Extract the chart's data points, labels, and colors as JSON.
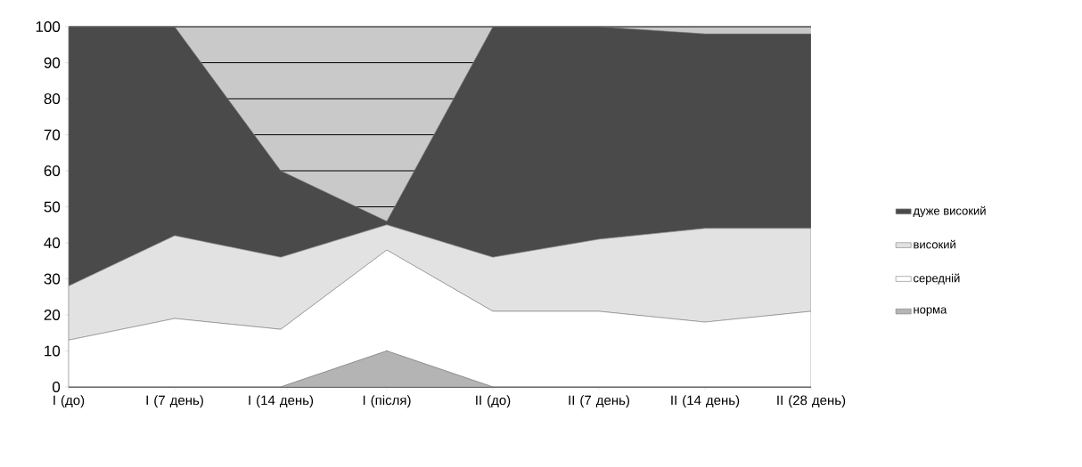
{
  "chart_data": {
    "type": "area",
    "stacked": true,
    "categories": [
      "I (до)",
      "I (7 день)",
      "I (14 день)",
      "I (після)",
      "II (до)",
      "II (7 день)",
      "II (14 день)",
      "II (28 день)"
    ],
    "series": [
      {
        "name": "норма",
        "color": "#b4b4b4",
        "values": [
          0,
          0,
          0,
          10,
          0,
          0,
          0,
          0
        ]
      },
      {
        "name": "середній",
        "color": "#ffffff",
        "values": [
          13,
          19,
          16,
          28,
          21,
          21,
          18,
          21
        ]
      },
      {
        "name": "високий",
        "color": "#e2e2e2",
        "values": [
          15,
          23,
          20,
          7,
          15,
          20,
          26,
          23
        ]
      },
      {
        "name": "дуже високий",
        "color": "#4a4a4a",
        "values": [
          72,
          58,
          24,
          1,
          64,
          59,
          54,
          54
        ]
      }
    ],
    "ylim": [
      0,
      100
    ],
    "yticks": [
      0,
      10,
      20,
      30,
      40,
      50,
      60,
      70,
      80,
      90,
      100
    ],
    "grid": "y",
    "legend": "right"
  }
}
